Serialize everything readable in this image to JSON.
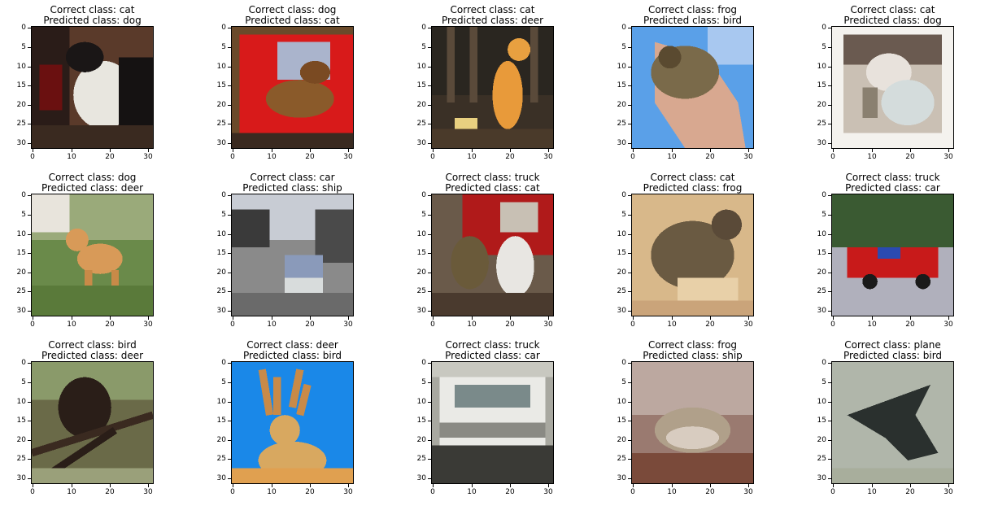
{
  "figure": {
    "panels": [
      {
        "correct": "Correct class: cat",
        "predicted": "Predicted class: dog",
        "scene": "cat-dark-white-fluffy"
      },
      {
        "correct": "Correct class: dog",
        "predicted": "Predicted class: cat",
        "scene": "dog-on-red-chair"
      },
      {
        "correct": "Correct class: cat",
        "predicted": "Predicted class: deer",
        "scene": "orange-cat-sitting"
      },
      {
        "correct": "Correct class: frog",
        "predicted": "Predicted class: bird",
        "scene": "frog-on-hand-blue-sky"
      },
      {
        "correct": "Correct class: cat",
        "predicted": "Predicted class: dog",
        "scene": "cat-framed-white-border"
      },
      {
        "correct": "Correct class: dog",
        "predicted": "Predicted class: deer",
        "scene": "dog-on-grass"
      },
      {
        "correct": "Correct class: car",
        "predicted": "Predicted class: ship",
        "scene": "car-on-street"
      },
      {
        "correct": "Correct class: truck",
        "predicted": "Predicted class: cat",
        "scene": "fire-truck-with-people"
      },
      {
        "correct": "Correct class: cat",
        "predicted": "Predicted class: frog",
        "scene": "cat-lying-beige"
      },
      {
        "correct": "Correct class: truck",
        "predicted": "Predicted class: car",
        "scene": "red-truck-trees"
      },
      {
        "correct": "Correct class: bird",
        "predicted": "Predicted class: deer",
        "scene": "dark-bird-branches"
      },
      {
        "correct": "Correct class: deer",
        "predicted": "Predicted class: bird",
        "scene": "deer-antlers-blue"
      },
      {
        "correct": "Correct class: truck",
        "predicted": "Predicted class: car",
        "scene": "white-truck-front"
      },
      {
        "correct": "Correct class: frog",
        "predicted": "Predicted class: ship",
        "scene": "frog-on-surface"
      },
      {
        "correct": "Correct class: plane",
        "predicted": "Predicted class: bird",
        "scene": "stealth-plane-gray"
      }
    ],
    "yticks": [
      "0",
      "5",
      "10",
      "15",
      "20",
      "25",
      "30"
    ],
    "xticks": [
      "0",
      "10",
      "20",
      "30"
    ]
  }
}
